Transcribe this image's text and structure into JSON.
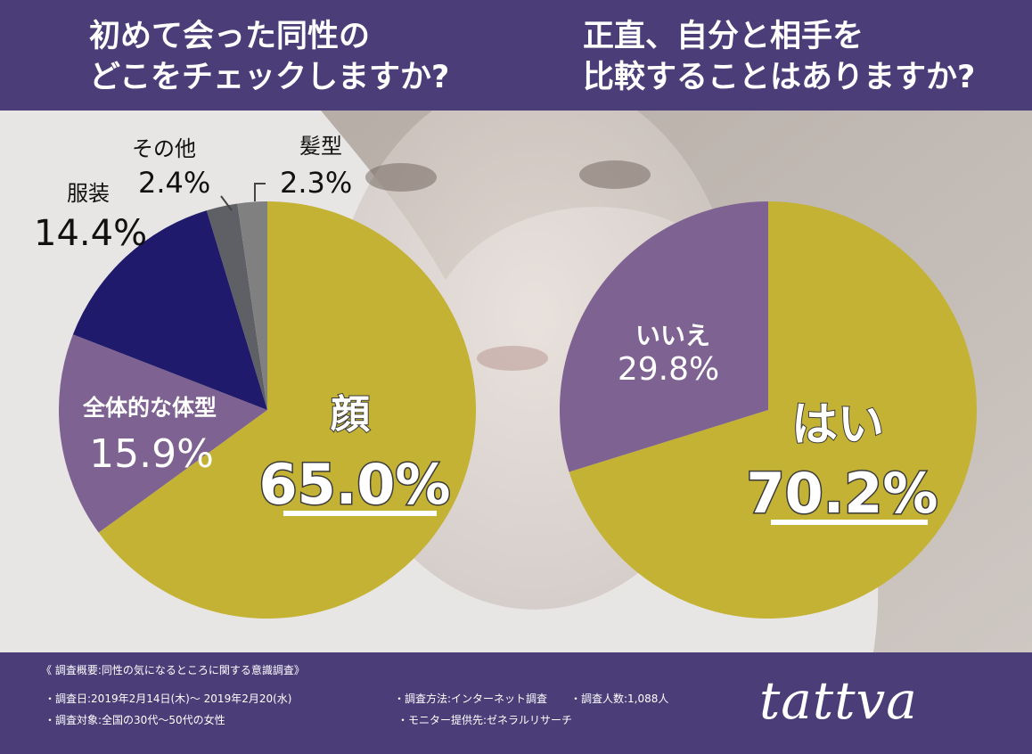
{
  "header": {
    "title_left": "初めて会った同性の\nどこをチェックしますか?",
    "title_right": "正直、自分と相手を\n比較することはありますか?"
  },
  "chart_data": [
    {
      "type": "pie",
      "title": "初めて会った同性の どこをチェックしますか?",
      "unit": "%",
      "slices": [
        {
          "label": "顔",
          "value": 65.0,
          "value_text": "65.0%",
          "color": "#c4b234"
        },
        {
          "label": "全体的な体型",
          "value": 15.9,
          "value_text": "15.9%",
          "color": "#7e6291"
        },
        {
          "label": "服装",
          "value": 14.4,
          "value_text": "14.4%",
          "color": "#1f1a6b"
        },
        {
          "label": "その他",
          "value": 2.4,
          "value_text": "2.4%",
          "color": "#5f5f66"
        },
        {
          "label": "髪型",
          "value": 2.3,
          "value_text": "2.3%",
          "color": "#808080"
        }
      ]
    },
    {
      "type": "pie",
      "title": "正直、自分と相手を 比較することはありますか?",
      "unit": "%",
      "slices": [
        {
          "label": "はい",
          "value": 70.2,
          "value_text": "70.2%",
          "color": "#c4b234"
        },
        {
          "label": "いいえ",
          "value": 29.8,
          "value_text": "29.8%",
          "color": "#7e6291"
        }
      ]
    }
  ],
  "footer": {
    "survey_title": "《 調査概要:同性の気になるところに関する意識調査》",
    "survey_date": "・調査日:2019年2月14日(木)〜 2019年2月20(水)",
    "survey_target": "・調査対象:全国の30代〜50代の女性",
    "survey_method": "・調査方法:インターネット調査",
    "survey_count": "・調査人数:1,088人",
    "survey_provider": "・モニター提供先:ゼネラルリサーチ",
    "brand": "tattva"
  }
}
